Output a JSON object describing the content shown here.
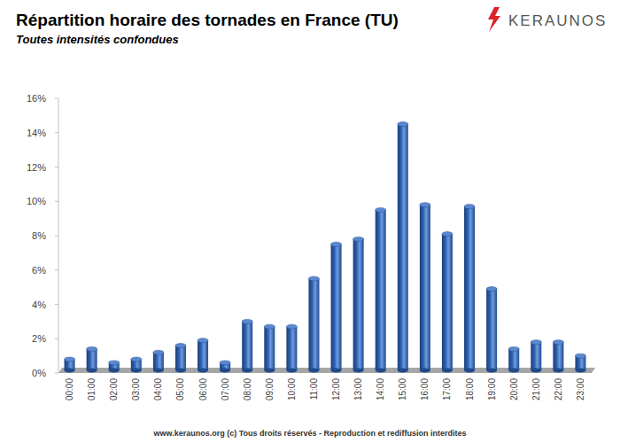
{
  "chart_data": {
    "type": "bar",
    "title": "Répartition horaire des tornades en France (TU)",
    "subtitle": "Toutes intensités confondues",
    "annotations": [
      "KERAUNOS",
      "www.keraunos.org  (c) Tous droits réservés - Reproduction et rediffusion interdites"
    ],
    "categories": [
      "00:00",
      "01:00",
      "02:00",
      "03:00",
      "04:00",
      "05:00",
      "06:00",
      "07:00",
      "08:00",
      "09:00",
      "10:00",
      "11:00",
      "12:00",
      "13:00",
      "14:00",
      "15:00",
      "16:00",
      "17:00",
      "18:00",
      "19:00",
      "20:00",
      "21:00",
      "22:00",
      "23:00"
    ],
    "values": [
      0.8,
      1.4,
      0.6,
      0.8,
      1.2,
      1.6,
      1.9,
      0.6,
      3.0,
      2.7,
      2.7,
      5.5,
      7.5,
      7.8,
      9.5,
      14.5,
      9.8,
      8.1,
      9.7,
      4.9,
      1.4,
      1.8,
      1.8,
      1.0
    ],
    "color": "#2e62b0",
    "ylim": [
      0,
      16
    ],
    "yticks": [
      {
        "value": 0,
        "label": "0%"
      },
      {
        "value": 2,
        "label": "2%"
      },
      {
        "value": 4,
        "label": "4%"
      },
      {
        "value": 6,
        "label": "6%"
      },
      {
        "value": 8,
        "label": "8%"
      },
      {
        "value": 10,
        "label": "10%"
      },
      {
        "value": 12,
        "label": "12%"
      },
      {
        "value": 14,
        "label": "14%"
      },
      {
        "value": 16,
        "label": "16%"
      }
    ],
    "grid": false
  }
}
